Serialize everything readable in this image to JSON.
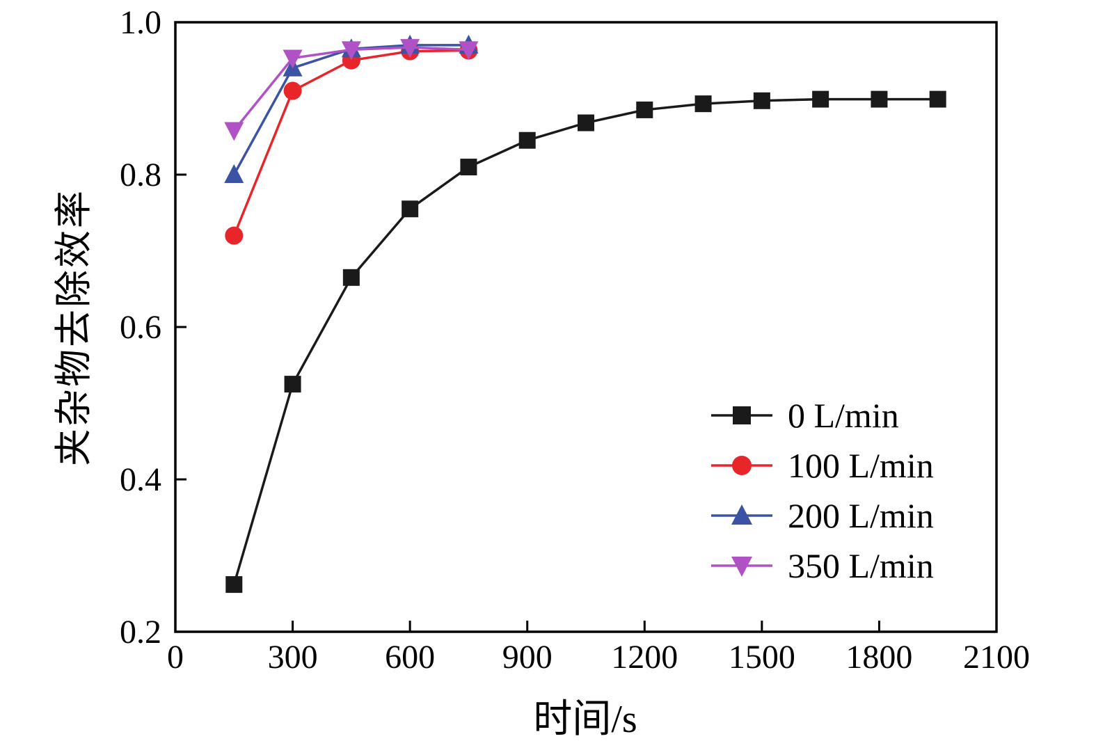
{
  "chart_data": {
    "type": "line",
    "title": "",
    "xlabel": "时间/s",
    "ylabel": "夹杂物去除效率",
    "xlim": [
      0,
      2100
    ],
    "ylim": [
      0.2,
      1.0
    ],
    "x_ticks": [
      0,
      300,
      600,
      900,
      1200,
      1500,
      1800,
      2100
    ],
    "y_ticks": [
      0.2,
      0.4,
      0.6,
      0.8,
      1.0
    ],
    "x_tick_labels": [
      "0",
      "300",
      "600",
      "900",
      "1200",
      "1500",
      "1800",
      "2100"
    ],
    "y_tick_labels": [
      "0.2",
      "0.4",
      "0.6",
      "0.8",
      "1.0"
    ],
    "grid": false,
    "legend_position": "right-center",
    "series": [
      {
        "name": "0 L/min",
        "color": "#1a1a1a",
        "marker": "square",
        "x": [
          150,
          300,
          450,
          600,
          750,
          900,
          1050,
          1200,
          1350,
          1500,
          1650,
          1800,
          1950
        ],
        "y": [
          0.262,
          0.525,
          0.665,
          0.755,
          0.81,
          0.845,
          0.868,
          0.885,
          0.893,
          0.897,
          0.899,
          0.899,
          0.899
        ]
      },
      {
        "name": "100 L/min",
        "color": "#e8262a",
        "marker": "circle",
        "x": [
          150,
          300,
          450,
          600,
          750
        ],
        "y": [
          0.72,
          0.91,
          0.95,
          0.962,
          0.963
        ]
      },
      {
        "name": "200 L/min",
        "color": "#3a53a4",
        "marker": "triangle-up",
        "x": [
          150,
          300,
          450,
          600,
          750
        ],
        "y": [
          0.8,
          0.94,
          0.965,
          0.97,
          0.97
        ]
      },
      {
        "name": "350 L/min",
        "color": "#b052c6",
        "marker": "triangle-down",
        "x": [
          150,
          300,
          450,
          600,
          750
        ],
        "y": [
          0.858,
          0.953,
          0.964,
          0.967,
          0.964
        ]
      }
    ]
  }
}
